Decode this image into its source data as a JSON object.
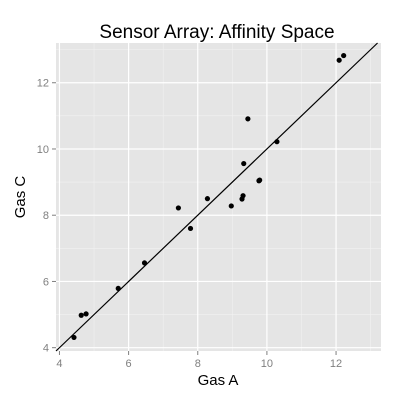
{
  "chart_data": {
    "type": "scatter",
    "title": "Sensor Array: Affinity Space",
    "xlabel": "Gas A",
    "ylabel": "Gas C",
    "xlim": [
      3.9,
      13.3
    ],
    "ylim": [
      3.9,
      13.2
    ],
    "xticks": [
      4,
      6,
      8,
      10,
      12
    ],
    "yticks": [
      4,
      6,
      8,
      10,
      12
    ],
    "grid": true,
    "background": "#e5e5e5",
    "grid_major_color": "#ffffff",
    "grid_minor_color": "#f2f2f2",
    "point_color": "#000000",
    "points": [
      {
        "x": 4.42,
        "y": 4.31
      },
      {
        "x": 4.63,
        "y": 4.98
      },
      {
        "x": 4.77,
        "y": 5.02
      },
      {
        "x": 5.7,
        "y": 5.79
      },
      {
        "x": 6.46,
        "y": 6.56
      },
      {
        "x": 7.44,
        "y": 8.22
      },
      {
        "x": 7.79,
        "y": 7.6
      },
      {
        "x": 8.28,
        "y": 8.5
      },
      {
        "x": 8.97,
        "y": 8.28
      },
      {
        "x": 9.28,
        "y": 8.49
      },
      {
        "x": 9.31,
        "y": 8.59
      },
      {
        "x": 9.33,
        "y": 9.56
      },
      {
        "x": 9.45,
        "y": 10.91
      },
      {
        "x": 9.77,
        "y": 9.04
      },
      {
        "x": 9.79,
        "y": 9.06
      },
      {
        "x": 10.29,
        "y": 10.22
      },
      {
        "x": 12.09,
        "y": 12.68
      },
      {
        "x": 12.22,
        "y": 12.82
      }
    ],
    "fit_line": {
      "slope": 1.0,
      "intercept": 0.0,
      "color": "#000000"
    }
  }
}
